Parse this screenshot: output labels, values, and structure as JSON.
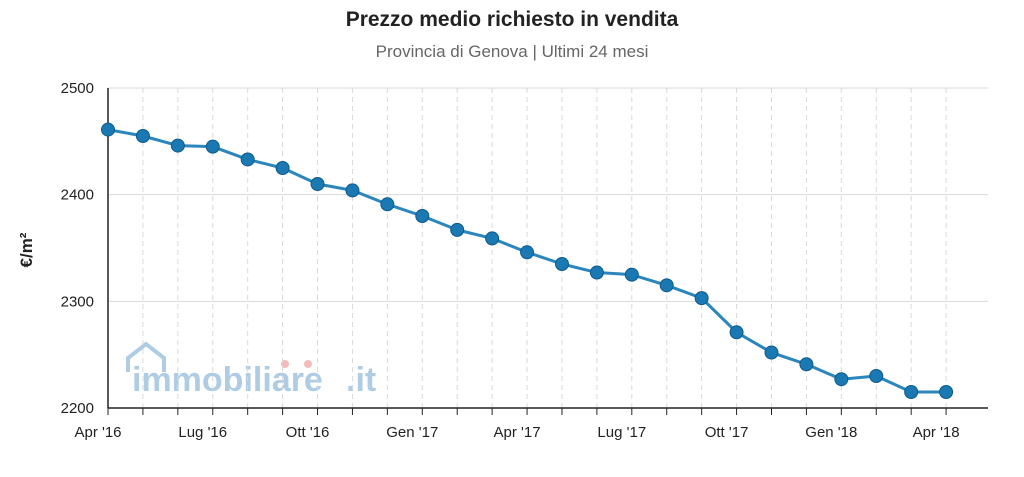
{
  "chart_data": {
    "type": "line",
    "title": "Prezzo medio richiesto in vendita",
    "subtitle": "Provincia di Genova | Ultimi 24 mesi",
    "ylabel": "€/m²",
    "xlabel": "",
    "ylim": [
      2200,
      2500
    ],
    "yticks": [
      2200,
      2300,
      2400,
      2500
    ],
    "xtick_labels": [
      "Apr '16",
      "Lug '16",
      "Ott '16",
      "Gen '17",
      "Apr '17",
      "Lug '17",
      "Ott '17",
      "Gen '18",
      "Apr '18"
    ],
    "xtick_months": [
      0,
      3,
      6,
      9,
      12,
      15,
      18,
      21,
      24
    ],
    "grid": true,
    "series": [
      {
        "x": [
          0,
          1,
          2,
          3,
          4,
          5,
          6,
          7,
          8,
          9,
          10,
          11,
          12,
          13,
          14,
          15,
          16,
          17,
          18,
          19,
          20,
          21,
          22,
          23,
          24
        ],
        "values": [
          2461,
          2455,
          2446,
          2445,
          2433,
          2425,
          2410,
          2404,
          2391,
          2380,
          2367,
          2359,
          2346,
          2335,
          2327,
          2325,
          2315,
          2303,
          2271,
          2252,
          2241,
          2227,
          2230,
          2215,
          2215
        ],
        "color": "#1a78b2",
        "line_color": "#2a86bd"
      }
    ]
  },
  "watermark": {
    "brand": "immobiliare",
    "suffix": ".it",
    "color_main": "#1a6fb0",
    "color_dot": "#e2403c"
  }
}
